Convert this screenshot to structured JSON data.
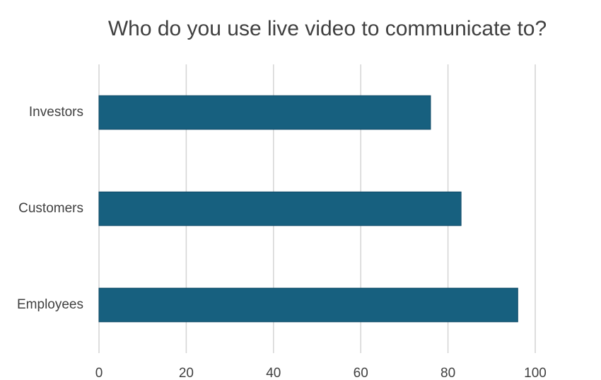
{
  "chart_data": {
    "type": "hbar",
    "title": "Who do you use live video to communicate to?",
    "categories": [
      "Investors",
      "Customers",
      "Employees"
    ],
    "values": [
      76,
      83,
      96
    ],
    "color": "#17607f",
    "xlim": [
      0,
      100
    ],
    "xticks": [
      0,
      20,
      40,
      60,
      80,
      100
    ],
    "grid": true
  }
}
